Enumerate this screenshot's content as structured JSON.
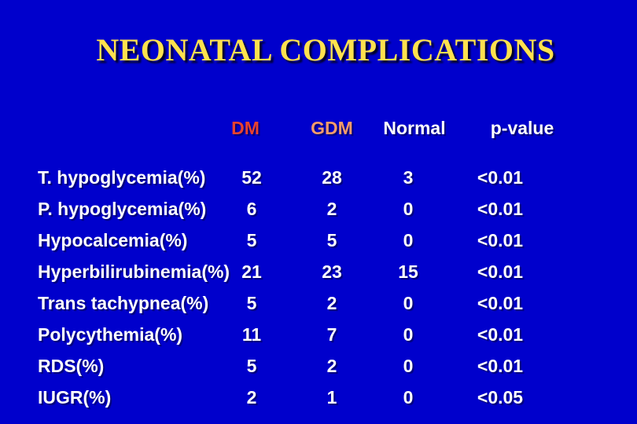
{
  "slide": {
    "title": "NEONATAL COMPLICATIONS",
    "colors": {
      "background": "#0000CC",
      "title": "#FFE14E",
      "dm_header": "#E8422F",
      "gdm_header": "#F59B6B",
      "text": "#FFFFFF"
    }
  },
  "table": {
    "columns": [
      {
        "key": "dm",
        "label": "DM"
      },
      {
        "key": "gdm",
        "label": "GDM"
      },
      {
        "key": "normal",
        "label": "Normal"
      },
      {
        "key": "pvalue",
        "label": "p-value"
      }
    ],
    "rows": [
      {
        "label": "T. hypoglycemia(%)",
        "dm": "52",
        "gdm": "28",
        "normal": "3",
        "pvalue": "<0.01"
      },
      {
        "label": "P. hypoglycemia(%)",
        "dm": "6",
        "gdm": "2",
        "normal": "0",
        "pvalue": "<0.01"
      },
      {
        "label": "Hypocalcemia(%)",
        "dm": "5",
        "gdm": "5",
        "normal": "0",
        "pvalue": "<0.01"
      },
      {
        "label": "Hyperbilirubinemia(%)",
        "dm": "21",
        "gdm": "23",
        "normal": "15",
        "pvalue": "<0.01"
      },
      {
        "label": "Trans tachypnea(%)",
        "dm": "5",
        "gdm": "2",
        "normal": "0",
        "pvalue": "<0.01"
      },
      {
        "label": "Polycythemia(%)",
        "dm": "11",
        "gdm": "7",
        "normal": "0",
        "pvalue": "<0.01"
      },
      {
        "label": "RDS(%)",
        "dm": "5",
        "gdm": "2",
        "normal": "0",
        "pvalue": "<0.01"
      },
      {
        "label": "IUGR(%)",
        "dm": "2",
        "gdm": "1",
        "normal": "0",
        "pvalue": "<0.05"
      }
    ]
  }
}
